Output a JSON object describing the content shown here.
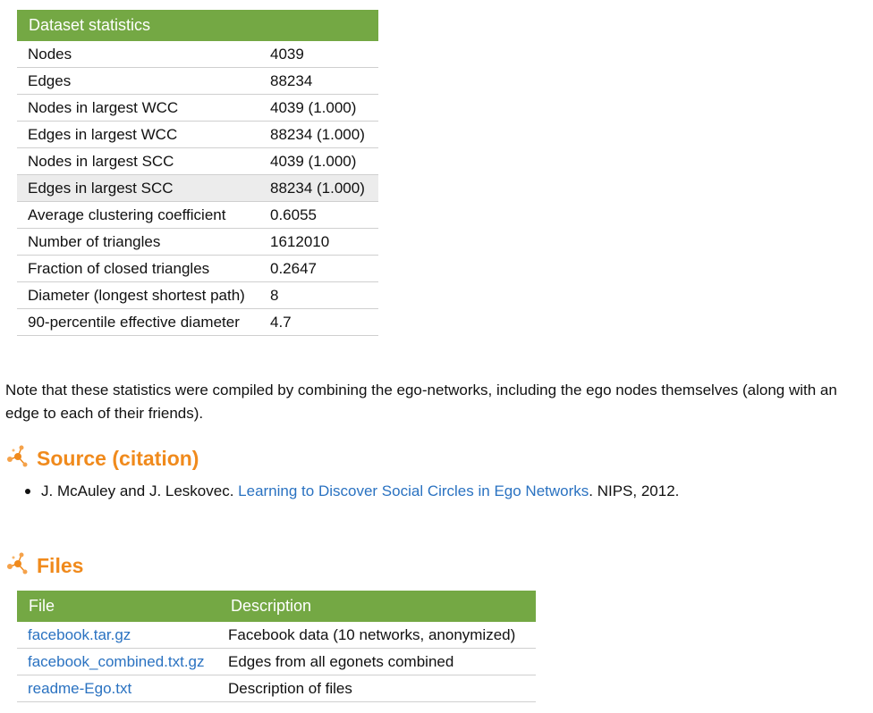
{
  "stats": {
    "header": "Dataset statistics",
    "rows": [
      {
        "label": "Nodes",
        "value": "4039"
      },
      {
        "label": "Edges",
        "value": "88234"
      },
      {
        "label": "Nodes in largest WCC",
        "value": "4039 (1.000)"
      },
      {
        "label": "Edges in largest WCC",
        "value": "88234 (1.000)"
      },
      {
        "label": "Nodes in largest SCC",
        "value": "4039 (1.000)"
      },
      {
        "label": "Edges in largest SCC",
        "value": "88234 (1.000)"
      },
      {
        "label": "Average clustering coefficient",
        "value": "0.6055"
      },
      {
        "label": "Number of triangles",
        "value": "1612010"
      },
      {
        "label": "Fraction of closed triangles",
        "value": "0.2647"
      },
      {
        "label": "Diameter (longest shortest path)",
        "value": "8"
      },
      {
        "label": "90-percentile effective diameter",
        "value": "4.7"
      }
    ]
  },
  "note": "Note that these statistics were compiled by combining the ego-networks, including the ego nodes themselves (along with an edge to each of their friends).",
  "source": {
    "heading": "Source (citation)",
    "icon": "molecule-icon",
    "citation_prefix": "J. McAuley and J. Leskovec. ",
    "citation_link": "Learning to Discover Social Circles in Ego Networks",
    "citation_suffix": ". NIPS, 2012."
  },
  "files": {
    "heading": "Files",
    "icon": "molecule-icon",
    "col_file": "File",
    "col_desc": "Description",
    "rows": [
      {
        "file": "facebook.tar.gz",
        "desc": "Facebook data (10 networks, anonymized)"
      },
      {
        "file": "facebook_combined.txt.gz",
        "desc": "Edges from all egonets combined"
      },
      {
        "file": "readme-Ego.txt",
        "desc": "Description of files"
      }
    ]
  },
  "colors": {
    "header_green": "#74a844",
    "heading_orange": "#f08a1c",
    "link_blue": "#2a72c1"
  }
}
